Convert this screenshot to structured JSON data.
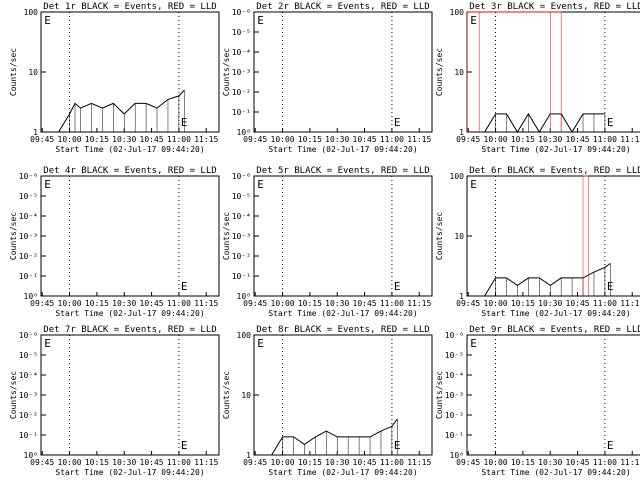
{
  "page": {
    "start_time_label": "Start Time (02-Jul-17 09:44:20)",
    "ylabel": "Counts/sec",
    "x_ticks": [
      "09:45",
      "10:00",
      "10:15",
      "10:30",
      "10:45",
      "11:00",
      "11:15"
    ],
    "marker": "E"
  },
  "colors": {
    "events": "#000000",
    "lld": "#ff0000",
    "dotted": "#000000"
  },
  "chart_data": [
    {
      "type": "line",
      "title": "Det 1r BLACK = Events, RED = LLD",
      "xlabel": "Start Time (02-Jul-17 09:44:20)",
      "ylabel": "Counts/sec",
      "scale": "log",
      "y_ticks": [
        "1",
        "10",
        "100"
      ],
      "ylim": [
        1,
        100
      ],
      "xlim": [
        "09:44:20",
        "11:22"
      ],
      "dotted_lines": [
        "10:00",
        "11:00"
      ],
      "e_markers": [
        "09:45",
        "11:00"
      ],
      "series": [
        {
          "color": "black",
          "values": [
            [
              9.9,
              1
            ],
            [
              10,
              2
            ],
            [
              10.05,
              3
            ],
            [
              10.1,
              2.5
            ],
            [
              10.2,
              3
            ],
            [
              10.3,
              2.5
            ],
            [
              10.4,
              3
            ],
            [
              10.5,
              2
            ],
            [
              10.6,
              3
            ],
            [
              10.7,
              3
            ],
            [
              10.8,
              2.5
            ],
            [
              10.9,
              3.5
            ],
            [
              11,
              4
            ],
            [
              11.05,
              5
            ]
          ]
        }
      ]
    },
    {
      "type": "line",
      "title": "Det 2r BLACK = Events, RED = LLD",
      "xlabel": "Start Time (02-Jul-17 09:44:20)",
      "ylabel": "Counts/sec",
      "scale": "log",
      "y_ticks": [
        "10⁰",
        "10⁻¹",
        "10⁻²",
        "10⁻³",
        "10⁻⁴",
        "10⁻⁵",
        "10⁻⁶"
      ],
      "ylim": [
        1,
        1000000
      ],
      "xlim": [
        "09:44:20",
        "11:22"
      ],
      "dotted_lines": [
        "10:00",
        "11:00"
      ],
      "e_markers": [
        "09:45",
        "11:00"
      ],
      "series": []
    },
    {
      "type": "line",
      "title": "Det 3r BLACK = Events, RED = LLD",
      "xlabel": "Start Time (02-Jul-17 09:44:20)",
      "ylabel": "Counts/sec",
      "scale": "log",
      "y_ticks": [
        "1",
        "10",
        "100"
      ],
      "ylim": [
        1,
        100
      ],
      "xlim": [
        "09:44:20",
        "11:22"
      ],
      "dotted_lines": [
        "10:00",
        "11:00"
      ],
      "e_markers": [
        "09:45",
        "11:00"
      ],
      "series": [
        {
          "color": "black",
          "values": [
            [
              9.9,
              1
            ],
            [
              10,
              2
            ],
            [
              10.1,
              2
            ],
            [
              10.2,
              1
            ],
            [
              10.3,
              2
            ],
            [
              10.4,
              1
            ],
            [
              10.5,
              2
            ],
            [
              10.6,
              2
            ],
            [
              10.7,
              1
            ],
            [
              10.8,
              2
            ],
            [
              10.9,
              2
            ],
            [
              11,
              2
            ]
          ]
        },
        {
          "color": "red",
          "values": [
            [
              9.74,
              100
            ],
            [
              9.85,
              100
            ],
            [
              10.5,
              100
            ],
            [
              10.6,
              100
            ]
          ]
        }
      ]
    },
    {
      "type": "line",
      "title": "Det 4r BLACK = Events, RED = LLD",
      "xlabel": "Start Time (02-Jul-17 09:44:20)",
      "ylabel": "Counts/sec",
      "scale": "log",
      "y_ticks": [
        "10⁰",
        "10⁻¹",
        "10⁻²",
        "10⁻³",
        "10⁻⁴",
        "10⁻⁵",
        "10⁻⁶"
      ],
      "ylim": [
        1,
        1000000
      ],
      "xlim": [
        "09:44:20",
        "11:22"
      ],
      "dotted_lines": [
        "10:00",
        "11:00"
      ],
      "e_markers": [
        "09:45",
        "11:00"
      ],
      "series": []
    },
    {
      "type": "line",
      "title": "Det 5r BLACK = Events, RED = LLD",
      "xlabel": "Start Time (02-Jul-17 09:44:20)",
      "ylabel": "Counts/sec",
      "scale": "log",
      "y_ticks": [
        "10⁰",
        "10⁻¹",
        "10⁻²",
        "10⁻³",
        "10⁻⁴",
        "10⁻⁵",
        "10⁻⁶"
      ],
      "ylim": [
        1,
        1000000
      ],
      "xlim": [
        "09:44:20",
        "11:22"
      ],
      "dotted_lines": [
        "10:00",
        "11:00"
      ],
      "e_markers": [
        "09:45",
        "11:00"
      ],
      "series": []
    },
    {
      "type": "line",
      "title": "Det 6r BLACK = Events, RED = LLD",
      "xlabel": "Start Time (02-Jul-17 09:44:20)",
      "ylabel": "Counts/sec",
      "scale": "log",
      "y_ticks": [
        "1",
        "10",
        "100"
      ],
      "ylim": [
        1,
        100
      ],
      "xlim": [
        "09:44:20",
        "11:22"
      ],
      "dotted_lines": [
        "10:00",
        "11:00"
      ],
      "e_markers": [
        "09:45",
        "11:00"
      ],
      "series": [
        {
          "color": "black",
          "values": [
            [
              9.9,
              1
            ],
            [
              10,
              2
            ],
            [
              10.1,
              2
            ],
            [
              10.2,
              1.5
            ],
            [
              10.3,
              2
            ],
            [
              10.4,
              2
            ],
            [
              10.5,
              1.5
            ],
            [
              10.6,
              2
            ],
            [
              10.7,
              2
            ],
            [
              10.8,
              2
            ],
            [
              10.9,
              2.5
            ],
            [
              11,
              3
            ],
            [
              11.05,
              3.5
            ]
          ]
        },
        {
          "color": "red",
          "values": [
            [
              10.8,
              100
            ],
            [
              10.85,
              100
            ]
          ]
        }
      ]
    },
    {
      "type": "line",
      "title": "Det 7r BLACK = Events, RED = LLD",
      "xlabel": "Start Time (02-Jul-17 09:44:20)",
      "ylabel": "Counts/sec",
      "scale": "log",
      "y_ticks": [
        "10⁰",
        "10⁻¹",
        "10⁻²",
        "10⁻³",
        "10⁻⁴",
        "10⁻⁵",
        "10⁻⁶"
      ],
      "ylim": [
        1,
        1000000
      ],
      "xlim": [
        "09:44:20",
        "11:22"
      ],
      "dotted_lines": [
        "10:00",
        "11:00"
      ],
      "e_markers": [
        "09:45",
        "11:00"
      ],
      "series": []
    },
    {
      "type": "line",
      "title": "Det 8r BLACK = Events, RED = LLD",
      "xlabel": "Start Time (02-Jul-17 09:44:20)",
      "ylabel": "Counts/sec",
      "scale": "log",
      "y_ticks": [
        "1",
        "10",
        "100"
      ],
      "ylim": [
        1,
        100
      ],
      "xlim": [
        "09:44:20",
        "11:22"
      ],
      "dotted_lines": [
        "10:00",
        "11:00"
      ],
      "e_markers": [
        "09:45",
        "11:00"
      ],
      "series": [
        {
          "color": "black",
          "values": [
            [
              9.9,
              1
            ],
            [
              10,
              2
            ],
            [
              10.1,
              2
            ],
            [
              10.2,
              1.5
            ],
            [
              10.3,
              2
            ],
            [
              10.4,
              2.5
            ],
            [
              10.5,
              2
            ],
            [
              10.6,
              2
            ],
            [
              10.7,
              2
            ],
            [
              10.8,
              2
            ],
            [
              10.9,
              2.5
            ],
            [
              11,
              3
            ],
            [
              11.05,
              4
            ]
          ]
        }
      ]
    },
    {
      "type": "line",
      "title": "Det 9r BLACK = Events, RED = LLD",
      "xlabel": "Start Time (02-Jul-17 09:44:20)",
      "ylabel": "Counts/sec",
      "scale": "log",
      "y_ticks": [
        "10⁰",
        "10⁻¹",
        "10⁻²",
        "10⁻³",
        "10⁻⁴",
        "10⁻⁵",
        "10⁻⁶"
      ],
      "ylim": [
        1,
        1000000
      ],
      "xlim": [
        "09:44:20",
        "11:22"
      ],
      "dotted_lines": [
        "10:00",
        "11:00"
      ],
      "e_markers": [
        "09:45",
        "11:00"
      ],
      "series": []
    }
  ]
}
